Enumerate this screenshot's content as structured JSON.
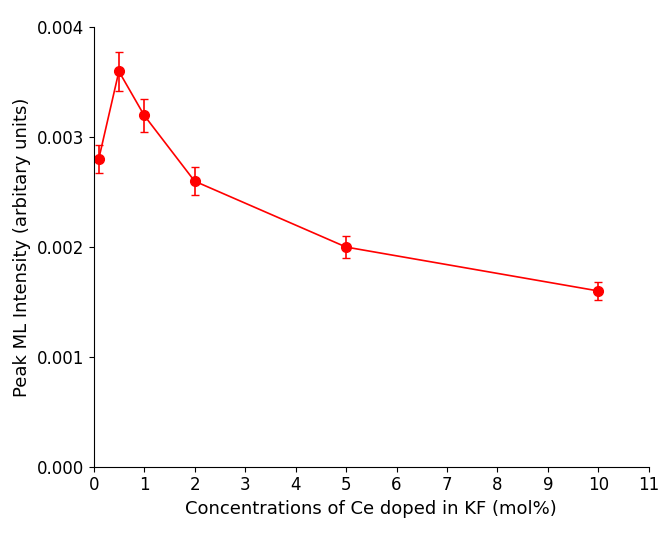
{
  "chart_data": {
    "type": "line",
    "x_label": "Concentrations of Ce doped in KF (mol%)",
    "y_label": "Peak ML Intensity (arbitary units)",
    "x": [
      0.1,
      0.5,
      1,
      2,
      5,
      10
    ],
    "values": [
      0.0028,
      0.0036,
      0.0032,
      0.0026,
      0.002,
      0.0016
    ],
    "errors": [
      0.00013,
      0.00018,
      0.00015,
      0.00013,
      0.0001,
      8e-05
    ],
    "color": "#ff0000",
    "marker": "o",
    "line_style": "solid",
    "xlim": [
      0,
      11
    ],
    "xticks": [
      0,
      1,
      2,
      3,
      4,
      5,
      6,
      7,
      8,
      9,
      10,
      11
    ],
    "ylim": [
      0,
      0.004
    ],
    "yticks": [
      {
        "value": 0,
        "label": "0.000"
      },
      {
        "value": 0.001,
        "label": "0.001"
      },
      {
        "value": 0.002,
        "label": "0.002"
      },
      {
        "value": 0.003,
        "label": "0.003"
      },
      {
        "value": 0.004,
        "label": "0.004"
      }
    ],
    "grid": false
  }
}
